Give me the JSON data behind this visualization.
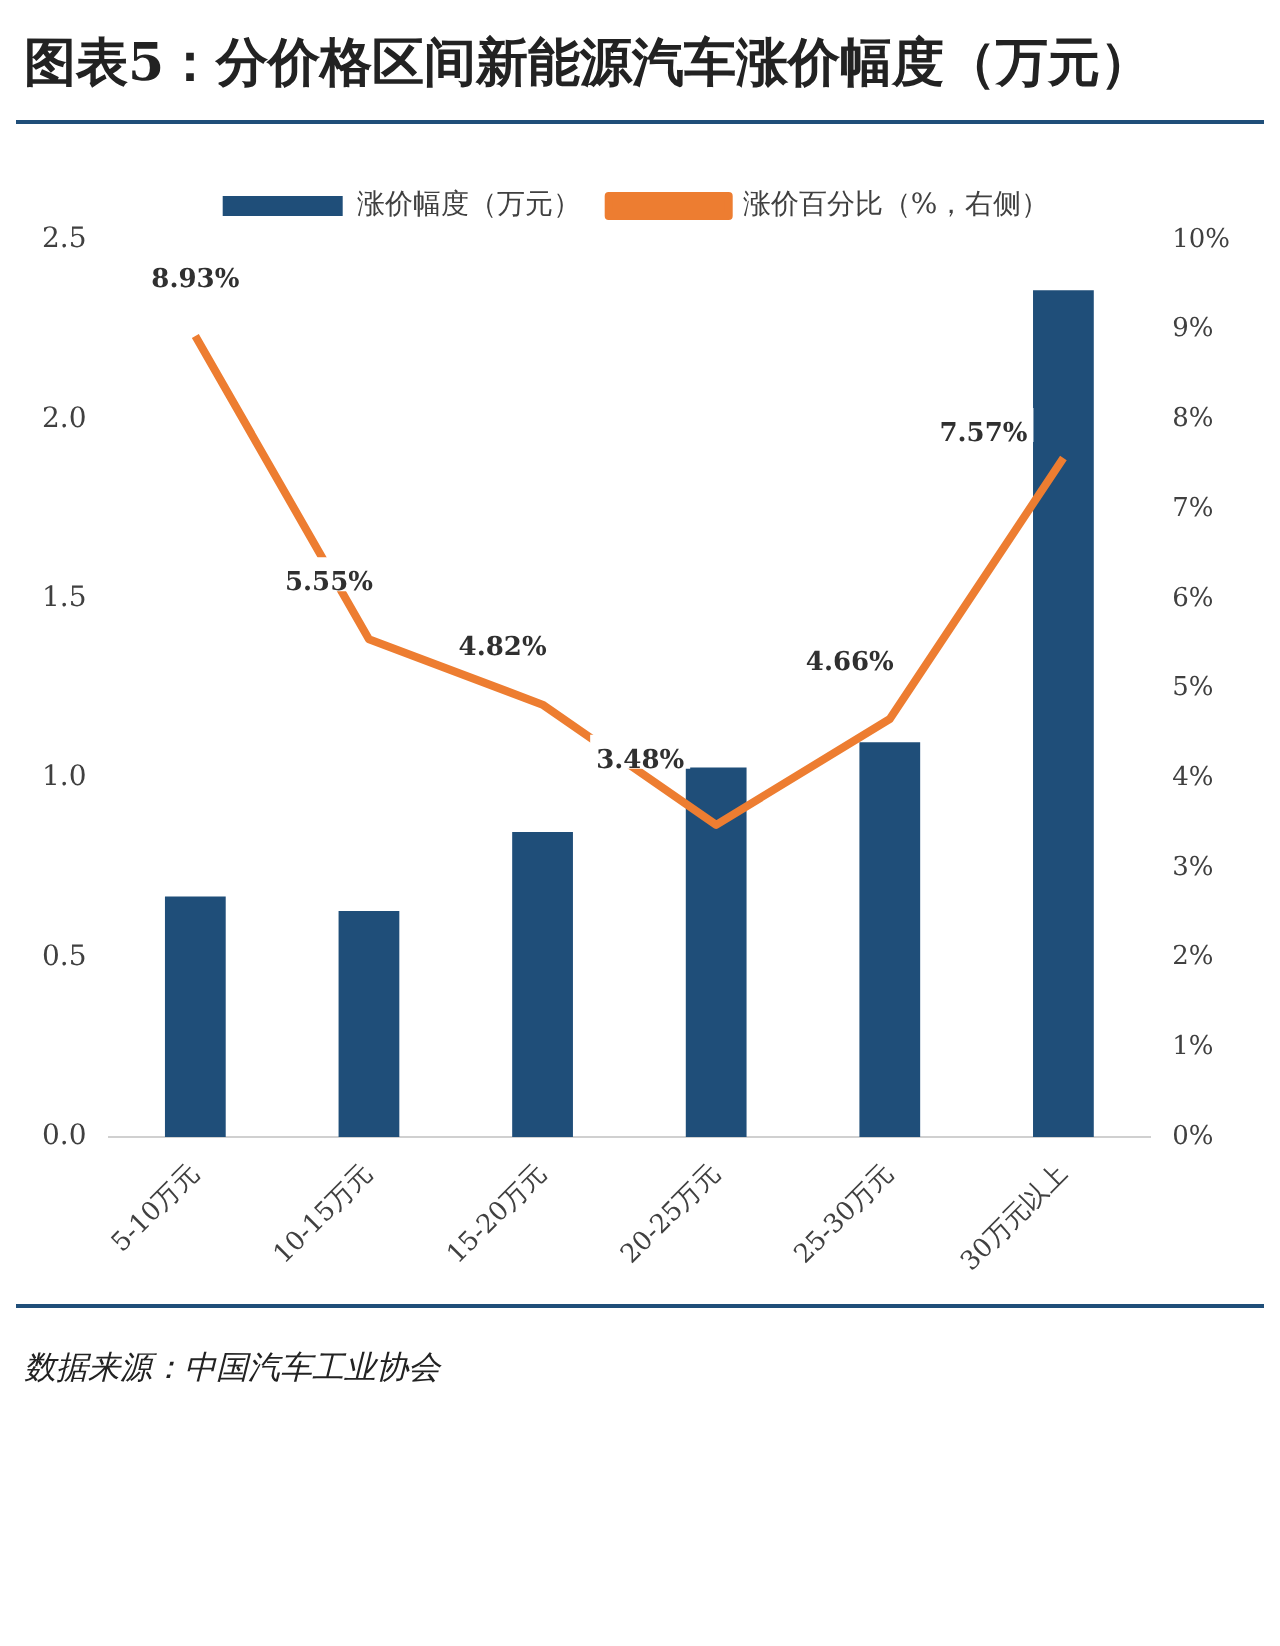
{
  "chart_data": {
    "type": "bar",
    "title": "图表5：分价格区间新能源汽车涨价幅度（万元）",
    "categories": [
      "5-10万元",
      "10-15万元",
      "15-20万元",
      "20-25万元",
      "25-30万元",
      "30万元以上"
    ],
    "series": [
      {
        "name": "涨价幅度（万元）",
        "color": "#1f4e79",
        "values": [
          0.67,
          0.63,
          0.85,
          1.03,
          1.1,
          2.36
        ]
      },
      {
        "name": "涨价百分比（%，右侧）",
        "type": "line",
        "axis": "y2",
        "color": "#ed7d31",
        "values": [
          8.93,
          5.55,
          4.82,
          3.48,
          4.66,
          7.57
        ],
        "value_labels": [
          "8.93%",
          "5.55%",
          "4.82%",
          "3.48%",
          "4.66%",
          "7.57%"
        ]
      }
    ],
    "ylim": [
      0,
      2.5
    ],
    "yticks": [
      {
        "value": 0,
        "label": "0.0"
      },
      {
        "value": 0.5,
        "label": "0.5"
      },
      {
        "value": 1,
        "label": "1.0"
      },
      {
        "value": 1.5,
        "label": "1.5"
      },
      {
        "value": 2,
        "label": "2.0"
      },
      {
        "value": 2.5,
        "label": "2.5"
      }
    ],
    "y2lim": [
      0,
      10
    ],
    "y2ticks": [
      {
        "value": 0,
        "label": "0%"
      },
      {
        "value": 1,
        "label": "1%"
      },
      {
        "value": 2,
        "label": "2%"
      },
      {
        "value": 3,
        "label": "3%"
      },
      {
        "value": 4,
        "label": "4%"
      },
      {
        "value": 5,
        "label": "5%"
      },
      {
        "value": 6,
        "label": "6%"
      },
      {
        "value": 7,
        "label": "7%"
      },
      {
        "value": 8,
        "label": "8%"
      },
      {
        "value": 9,
        "label": "9%"
      },
      {
        "value": 10,
        "label": "10%"
      }
    ],
    "grid": false,
    "legend": "top",
    "marker": "none",
    "line_style": "solid",
    "annotations": [
      "数据来源：中国汽车工业协会"
    ]
  }
}
